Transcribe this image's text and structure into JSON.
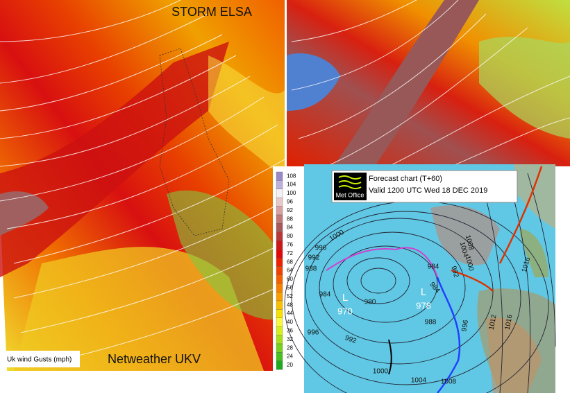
{
  "left_map": {
    "title": "STORM ELSA",
    "credit": "Netweather UKV",
    "legend": {
      "title": "Uk wind Gusts (mph)",
      "ticks": [
        108,
        104,
        100,
        96,
        92,
        88,
        84,
        80,
        76,
        72,
        68,
        64,
        60,
        56,
        52,
        48,
        44,
        40,
        36,
        32,
        28,
        24,
        20
      ],
      "colors": [
        "#9a88c8",
        "#bdb0dc",
        "#f4f0f4",
        "#e8c8c8",
        "#d8a0a0",
        "#c07878",
        "#a85858",
        "#b83838",
        "#cc1818",
        "#e00808",
        "#ee2000",
        "#f24000",
        "#f46000",
        "#f68000",
        "#f8a000",
        "#f8c000",
        "#f8e000",
        "#f8f840",
        "#d4ee20",
        "#a8e020",
        "#78d020",
        "#48c020",
        "#20a820"
      ]
    }
  },
  "forecast_chart": {
    "title": "Forecast chart (T+60)",
    "valid": "Valid 1200 UTC Wed 18 DEC 2019",
    "logo": "Met Office",
    "lows": [
      {
        "letter": "L",
        "pressure": 970
      },
      {
        "letter": "L",
        "pressure": 978
      }
    ],
    "isobar_labels": [
      1000,
      996,
      992,
      988,
      984,
      980,
      1008,
      1004,
      1000,
      992,
      984,
      1016,
      1012,
      1016,
      988,
      996,
      992,
      996,
      984,
      1000,
      1004,
      1008
    ]
  }
}
